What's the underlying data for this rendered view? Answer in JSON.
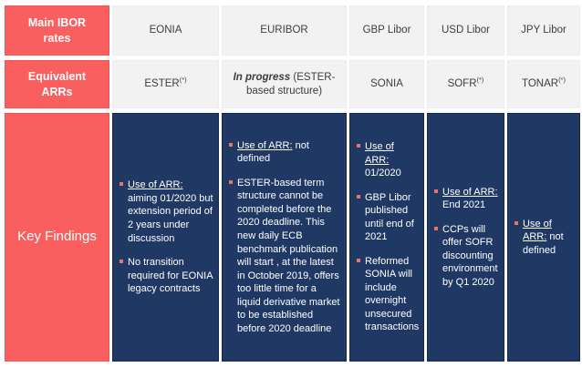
{
  "palette": {
    "accent_red": "#F95F5F",
    "navy": "#1F3864",
    "cell_gray": "#F2F2F2",
    "bullet_red": "#E8756A",
    "header_text": "#3D3D3D",
    "label_text": "#FFFFFF"
  },
  "row_labels": {
    "ibor": "Main IBOR rates",
    "arr": "Equivalent ARRs",
    "findings": "Key Findings"
  },
  "columns": [
    {
      "ibor": "EONIA",
      "arr_main": "ESTER",
      "arr_sup": "(*)",
      "findings": [
        {
          "lead": "Use of ARR:",
          "rest": " aiming 01/2020 but extension period of 2 years under discussion"
        },
        {
          "lead": "",
          "rest": "No transition required for EONIA legacy contracts"
        }
      ]
    },
    {
      "ibor": "EURIBOR",
      "arr_em": "In progress",
      "arr_rest": " (ESTER-based structure)",
      "findings": [
        {
          "lead": "Use of ARR:",
          "rest": " not defined"
        },
        {
          "lead": "",
          "rest": "ESTER-based term structure cannot be completed before the 2020 deadline. This new daily ECB benchmark publication will start , at the latest in October 2019, offers too little time for a liquid derivative market to be established before 2020 deadline"
        }
      ]
    },
    {
      "ibor": "GBP Libor",
      "arr_main": "SONIA",
      "arr_sup": "",
      "findings": [
        {
          "lead": "Use of ARR:",
          "rest": " 01/2020"
        },
        {
          "lead": "",
          "rest": "GBP Libor published until end of 2021"
        },
        {
          "lead": "",
          "rest": "Reformed SONIA will include overnight unsecured transactions"
        }
      ]
    },
    {
      "ibor": "USD Libor",
      "arr_main": "SOFR",
      "arr_sup": "(*)",
      "findings": [
        {
          "lead": "Use of ARR:",
          "rest": " End 2021"
        },
        {
          "lead": "",
          "rest": "CCPs will offer SOFR discounting environment by Q1 2020"
        }
      ]
    },
    {
      "ibor": "JPY Libor",
      "arr_main": "TONAR",
      "arr_sup": "(*)",
      "findings": [
        {
          "lead": "Use of ARR:",
          "rest": " not defined"
        }
      ]
    }
  ]
}
